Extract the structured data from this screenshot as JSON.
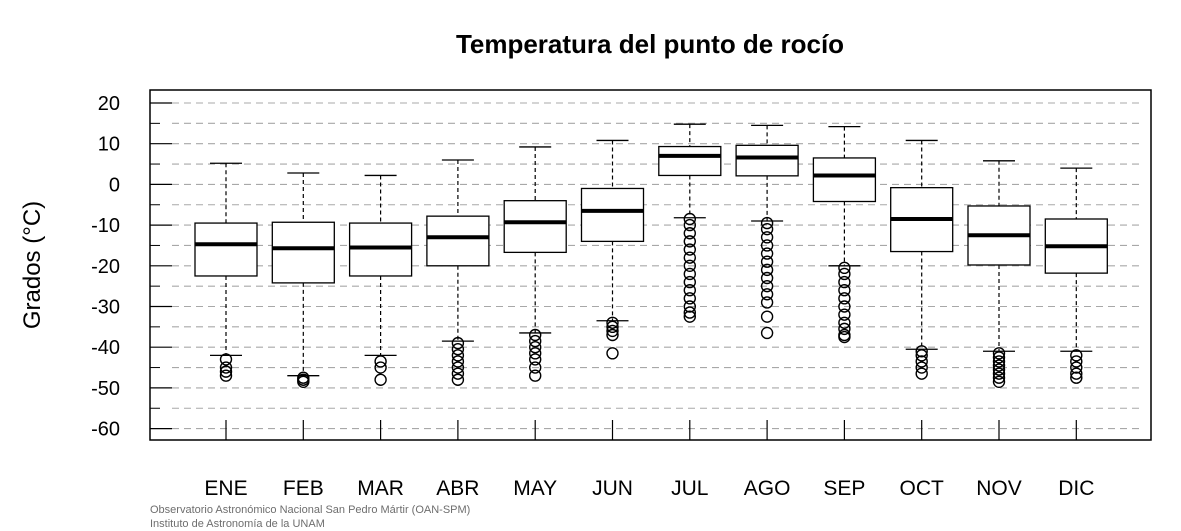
{
  "chart_data": {
    "type": "box",
    "title": "Temperatura del punto de rocío",
    "xlabel": "",
    "ylabel": "Grados (°C)",
    "ylim": [
      -63,
      21.5
    ],
    "yticks": [
      20,
      10,
      0,
      -10,
      -20,
      -30,
      -40,
      -50,
      -60
    ],
    "grid_minor_step": 5,
    "grid": true,
    "categories": [
      "ENE",
      "FEB",
      "MAR",
      "ABR",
      "MAY",
      "JUN",
      "JUL",
      "AGO",
      "SEP",
      "OCT",
      "NOV",
      "DIC"
    ],
    "boxes": [
      {
        "whisker_low": -42,
        "q1": -22.5,
        "median": -14.7,
        "q3": -9.5,
        "whisker_high": 5.2,
        "outliers": [
          -43,
          -45,
          -46,
          -47
        ]
      },
      {
        "whisker_low": -47,
        "q1": -24.2,
        "median": -15.7,
        "q3": -9.3,
        "whisker_high": 2.8,
        "outliers": [
          -47.5,
          -48,
          -48.5
        ]
      },
      {
        "whisker_low": -42,
        "q1": -22.5,
        "median": -15.5,
        "q3": -9.5,
        "whisker_high": 2.2,
        "outliers": [
          -43.5,
          -45,
          -48
        ]
      },
      {
        "whisker_low": -38.5,
        "q1": -20,
        "median": -13,
        "q3": -7.8,
        "whisker_high": 6,
        "outliers": [
          -39,
          -40.5,
          -42,
          -43.5,
          -45,
          -46.5,
          -48
        ]
      },
      {
        "whisker_low": -36.5,
        "q1": -16.7,
        "median": -9.3,
        "q3": -4,
        "whisker_high": 9.2,
        "outliers": [
          -37,
          -38.5,
          -40,
          -41.5,
          -43,
          -45,
          -47
        ]
      },
      {
        "whisker_low": -33.5,
        "q1": -14,
        "median": -6.5,
        "q3": -1,
        "whisker_high": 10.8,
        "outliers": [
          -34,
          -35,
          -36,
          -37,
          -41.5
        ]
      },
      {
        "whisker_low": -8.2,
        "q1": 2.2,
        "median": 7,
        "q3": 9.3,
        "whisker_high": 14.8,
        "outliers": [
          -8.5,
          -10,
          -12,
          -14,
          -16,
          -18,
          -20,
          -22,
          -24,
          -26,
          -28,
          -30,
          -31.5,
          -32.5
        ]
      },
      {
        "whisker_low": -9,
        "q1": 2.1,
        "median": 6.6,
        "q3": 9.6,
        "whisker_high": 14.5,
        "outliers": [
          -9.5,
          -11,
          -13,
          -15,
          -17,
          -19,
          -21,
          -23,
          -25,
          -27,
          -29,
          -32.5,
          -36.5
        ]
      },
      {
        "whisker_low": -20,
        "q1": -4.2,
        "median": 2.2,
        "q3": 6.5,
        "whisker_high": 14.2,
        "outliers": [
          -20.5,
          -22,
          -24,
          -26,
          -28,
          -30,
          -32,
          -34,
          -35.5,
          -37,
          -37.5
        ]
      },
      {
        "whisker_low": -40.5,
        "q1": -16.5,
        "median": -8.5,
        "q3": -0.8,
        "whisker_high": 10.8,
        "outliers": [
          -41,
          -42,
          -43.5,
          -45,
          -46.5
        ]
      },
      {
        "whisker_low": -41,
        "q1": -19.8,
        "median": -12.5,
        "q3": -5.3,
        "whisker_high": 5.8,
        "outliers": [
          -41.5,
          -42.5,
          -43.5,
          -44.5,
          -45.5,
          -46.5,
          -47.5,
          -48.5
        ]
      },
      {
        "whisker_low": -41,
        "q1": -21.8,
        "median": -15.2,
        "q3": -8.5,
        "whisker_high": 4,
        "outliers": [
          -42,
          -43.5,
          -45,
          -46.5,
          -47.5
        ]
      }
    ]
  },
  "credits": {
    "line1": "Observatorio Astronómico Nacional San Pedro Mártir (OAN-SPM)",
    "line2": "Instituto de Astronomía de la UNAM"
  }
}
